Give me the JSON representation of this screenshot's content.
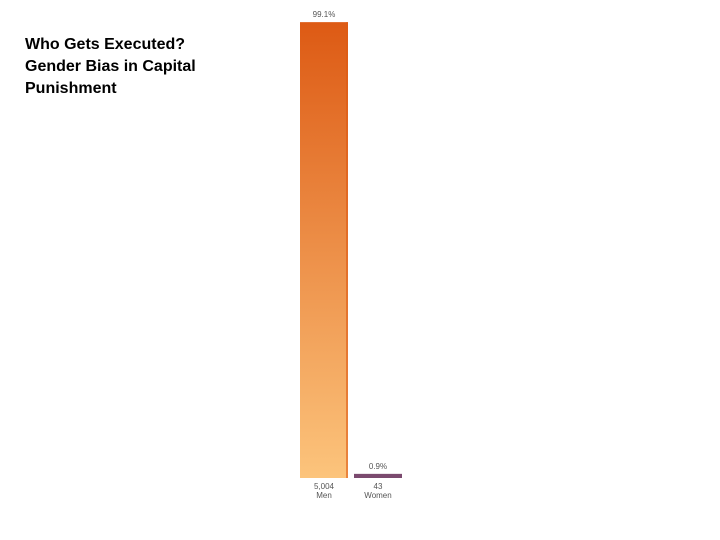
{
  "chart_data": {
    "type": "bar",
    "title": "Who Gets Executed? Gender Bias in Capital Punishment",
    "categories": [
      "Men",
      "Women"
    ],
    "category_counts": [
      "5,004",
      "43"
    ],
    "values": [
      99.1,
      0.9
    ],
    "value_labels": [
      "99.1%",
      "0.9%"
    ],
    "colors": [
      "#dd5a14",
      "#7b4a6f"
    ],
    "ylim": [
      0,
      100
    ]
  }
}
